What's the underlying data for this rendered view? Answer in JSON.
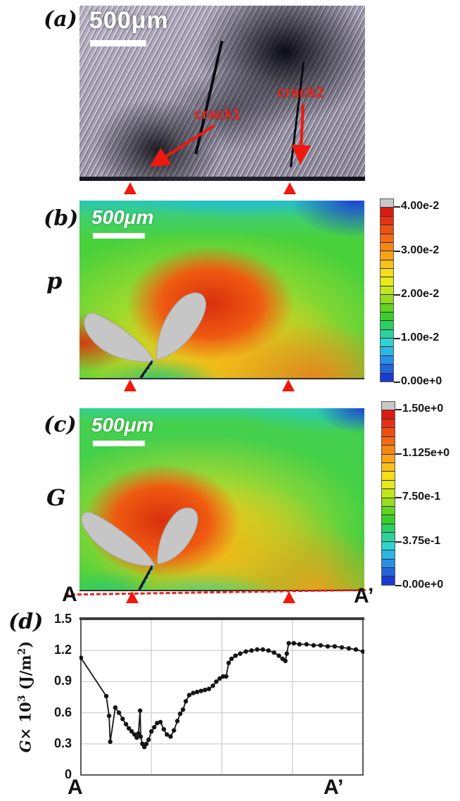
{
  "panel_a": {
    "label": "(a)",
    "scalebar_label": "500μm",
    "crack1_label": "crack1",
    "crack2_label": "crack2",
    "marker_color": "#f0180e"
  },
  "panel_b": {
    "label": "(b)",
    "quantity_label": "p",
    "scalebar_label": "500μm",
    "colorbar_ticks": [
      "4.00e-2",
      "3.00e-2",
      "2.00e-2",
      "1.00e-2",
      "0.00e+0"
    ]
  },
  "panel_c": {
    "label": "(c)",
    "quantity_label": "G",
    "scalebar_label": "500μm",
    "colorbar_ticks": [
      "1.50e+0",
      "1.125e+0",
      "7.50e-1",
      "3.75e-1",
      "0.00e+0"
    ],
    "section_start": "A",
    "section_end": "A’"
  },
  "colorbar_palette": [
    "#c8c8c8",
    "#dd1c10",
    "#e63212",
    "#ee4f12",
    "#f36b13",
    "#f68715",
    "#f9a316",
    "#fbc018",
    "#f6dc19",
    "#e7ea1b",
    "#c3e51d",
    "#97dc1f",
    "#62d321",
    "#3bcd2b",
    "#2ccf63",
    "#2dd29b",
    "#2ed4cd",
    "#2bb7e4",
    "#2790e6",
    "#2365dd",
    "#1b3ad2"
  ],
  "chart_data": {
    "type": "line",
    "panel_label": "(d)",
    "ylabel_parts": {
      "var": "G",
      "times": "× 10",
      "exp": "3",
      "unit_pre": " (J/m",
      "unit_exp": "2",
      "unit_post": ")"
    },
    "x_start_label": "A",
    "x_end_label": "A’",
    "ylim": [
      0,
      1.5
    ],
    "yticks": [
      "0",
      "0.3",
      "0.6",
      "0.9",
      "1.2",
      "1.5"
    ],
    "vertical_gridlines": 3,
    "grid": true,
    "legend": "none",
    "line_color": "#141414",
    "marker": "filled-circle",
    "x_axis_note": "distance along section A to A' (normalized 0-1)",
    "x": [
      0.0,
      0.09,
      0.1,
      0.104,
      0.122,
      0.135,
      0.148,
      0.16,
      0.17,
      0.18,
      0.19,
      0.198,
      0.204,
      0.21,
      0.212,
      0.218,
      0.225,
      0.232,
      0.24,
      0.25,
      0.26,
      0.27,
      0.282,
      0.294,
      0.305,
      0.318,
      0.33,
      0.342,
      0.352,
      0.362,
      0.372,
      0.384,
      0.398,
      0.412,
      0.426,
      0.44,
      0.454,
      0.468,
      0.48,
      0.492,
      0.504,
      0.515,
      0.524,
      0.534,
      0.548,
      0.565,
      0.585,
      0.605,
      0.625,
      0.645,
      0.665,
      0.685,
      0.702,
      0.715,
      0.725,
      0.73,
      0.737,
      0.755,
      0.775,
      0.8,
      0.825,
      0.85,
      0.875,
      0.9,
      0.925,
      0.95,
      0.975,
      1.0
    ],
    "y": [
      1.13,
      0.76,
      0.57,
      0.32,
      0.65,
      0.6,
      0.54,
      0.49,
      0.45,
      0.42,
      0.39,
      0.36,
      0.4,
      0.62,
      0.37,
      0.3,
      0.27,
      0.3,
      0.34,
      0.42,
      0.46,
      0.5,
      0.51,
      0.44,
      0.39,
      0.37,
      0.43,
      0.52,
      0.59,
      0.63,
      0.71,
      0.77,
      0.79,
      0.8,
      0.81,
      0.82,
      0.83,
      0.86,
      0.9,
      0.93,
      0.95,
      0.95,
      1.08,
      1.12,
      1.15,
      1.17,
      1.19,
      1.2,
      1.21,
      1.21,
      1.2,
      1.18,
      1.15,
      1.12,
      1.1,
      1.17,
      1.27,
      1.27,
      1.26,
      1.26,
      1.25,
      1.25,
      1.24,
      1.24,
      1.23,
      1.22,
      1.21,
      1.19
    ]
  }
}
